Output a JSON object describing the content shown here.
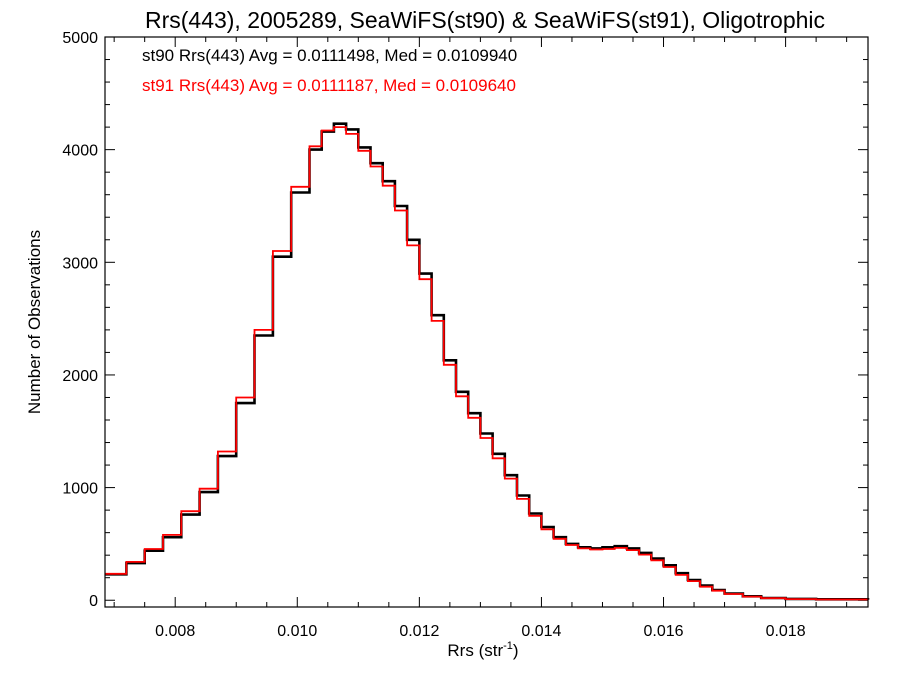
{
  "chart_data": {
    "type": "line",
    "step": true,
    "title": "Rrs(443), 2005289, SeaWiFS(st90) & SeaWiFS(st91), Oligotrophic",
    "xlabel_main": "Rrs (str",
    "xlabel_sup": "-1",
    "xlabel_end": ")",
    "ylabel": "Number of Observations",
    "xlim": [
      0.00685,
      0.01935
    ],
    "ylim": [
      -60,
      5000
    ],
    "xticks": [
      0.008,
      0.01,
      0.012,
      0.014,
      0.016,
      0.018
    ],
    "xtick_labels": [
      "0.008",
      "0.010",
      "0.012",
      "0.014",
      "0.016",
      "0.018"
    ],
    "xminor_step": 0.0005,
    "yticks": [
      0,
      1000,
      2000,
      3000,
      4000,
      5000
    ],
    "ytick_labels": [
      "0",
      "1000",
      "2000",
      "3000",
      "4000",
      "5000"
    ],
    "yminor_step": 200,
    "grid": false,
    "legend_position": "top-left",
    "series": [
      {
        "name": "st90 Rrs(443) Avg = 0.0111498, Med = 0.0109940",
        "color": "#000000",
        "x": [
          0.00685,
          0.0072,
          0.0075,
          0.0078,
          0.0081,
          0.0084,
          0.0087,
          0.009,
          0.0093,
          0.0096,
          0.0099,
          0.0102,
          0.0104,
          0.0106,
          0.0108,
          0.011,
          0.0112,
          0.0114,
          0.0116,
          0.0118,
          0.012,
          0.0122,
          0.0124,
          0.0126,
          0.0128,
          0.013,
          0.0132,
          0.0134,
          0.0136,
          0.0138,
          0.014,
          0.0142,
          0.0144,
          0.0146,
          0.0148,
          0.015,
          0.0152,
          0.0154,
          0.0156,
          0.0158,
          0.016,
          0.0162,
          0.0164,
          0.0166,
          0.0168,
          0.017,
          0.0173,
          0.0176,
          0.018,
          0.0185,
          0.01935
        ],
        "values": [
          230,
          330,
          440,
          560,
          760,
          960,
          1280,
          1750,
          2350,
          3050,
          3620,
          4000,
          4160,
          4230,
          4180,
          4020,
          3880,
          3720,
          3500,
          3200,
          2900,
          2530,
          2130,
          1850,
          1660,
          1480,
          1300,
          1110,
          930,
          770,
          650,
          560,
          500,
          470,
          460,
          470,
          480,
          460,
          420,
          370,
          310,
          240,
          180,
          130,
          90,
          60,
          35,
          20,
          12,
          8,
          5
        ]
      },
      {
        "name": "st91 Rrs(443) Avg = 0.0111187, Med = 0.0109640",
        "color": "#ff0000",
        "x": [
          0.00685,
          0.0072,
          0.0075,
          0.0078,
          0.0081,
          0.0084,
          0.0087,
          0.009,
          0.0093,
          0.0096,
          0.0099,
          0.0102,
          0.0104,
          0.0106,
          0.0108,
          0.011,
          0.0112,
          0.0114,
          0.0116,
          0.0118,
          0.012,
          0.0122,
          0.0124,
          0.0126,
          0.0128,
          0.013,
          0.0132,
          0.0134,
          0.0136,
          0.0138,
          0.014,
          0.0142,
          0.0144,
          0.0146,
          0.0148,
          0.015,
          0.0152,
          0.0154,
          0.0156,
          0.0158,
          0.016,
          0.0162,
          0.0164,
          0.0166,
          0.0168,
          0.017,
          0.0173,
          0.0176,
          0.018,
          0.0185,
          0.01935
        ],
        "values": [
          235,
          340,
          455,
          580,
          790,
          990,
          1320,
          1800,
          2400,
          3100,
          3670,
          4030,
          4170,
          4200,
          4140,
          3990,
          3850,
          3680,
          3460,
          3150,
          2850,
          2480,
          2090,
          1810,
          1620,
          1440,
          1260,
          1080,
          900,
          750,
          630,
          545,
          490,
          460,
          450,
          455,
          465,
          445,
          405,
          355,
          295,
          225,
          170,
          120,
          85,
          55,
          32,
          18,
          10,
          7,
          4
        ]
      }
    ]
  }
}
